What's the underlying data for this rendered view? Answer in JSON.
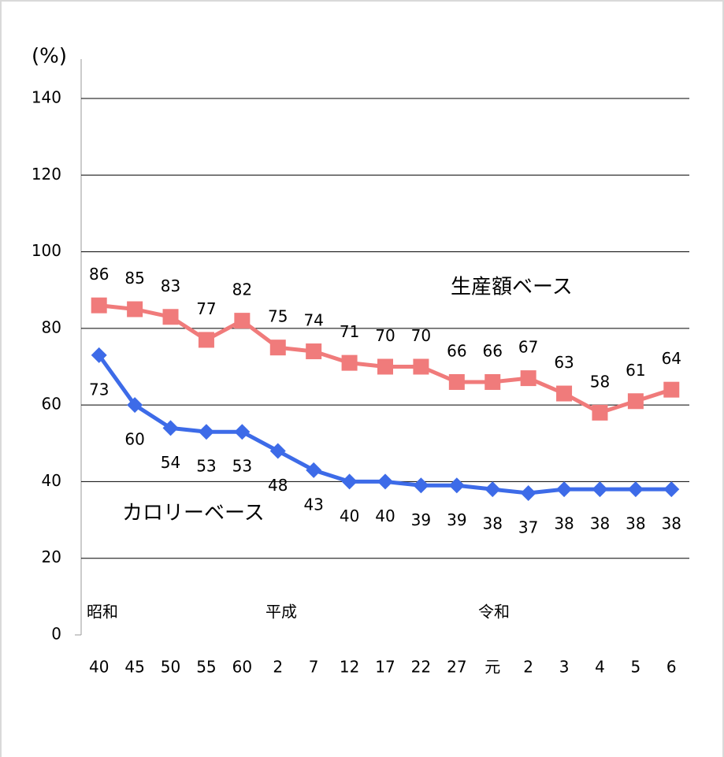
{
  "chart_data": {
    "type": "line",
    "y_unit": "(%)",
    "categories": [
      "40",
      "45",
      "50",
      "55",
      "60",
      "2",
      "7",
      "12",
      "17",
      "22",
      "27",
      "元",
      "2",
      "3",
      "4",
      "5",
      "6"
    ],
    "eras": [
      "昭和",
      "平成",
      "令和"
    ],
    "series": [
      {
        "name": "生産額ベース",
        "color": "#f07b7b",
        "marker": "square",
        "values": [
          86,
          85,
          83,
          77,
          82,
          75,
          74,
          71,
          70,
          70,
          66,
          66,
          67,
          63,
          58,
          61,
          64
        ]
      },
      {
        "name": "カロリーベース",
        "color": "#3d6be8",
        "marker": "diamond",
        "values": [
          73,
          60,
          54,
          53,
          53,
          48,
          43,
          40,
          40,
          39,
          39,
          38,
          37,
          38,
          38,
          38,
          38
        ]
      }
    ],
    "ylim": [
      0,
      140
    ],
    "yticks": [
      0,
      20,
      40,
      60,
      80,
      100,
      120,
      140
    ],
    "grid": true
  }
}
